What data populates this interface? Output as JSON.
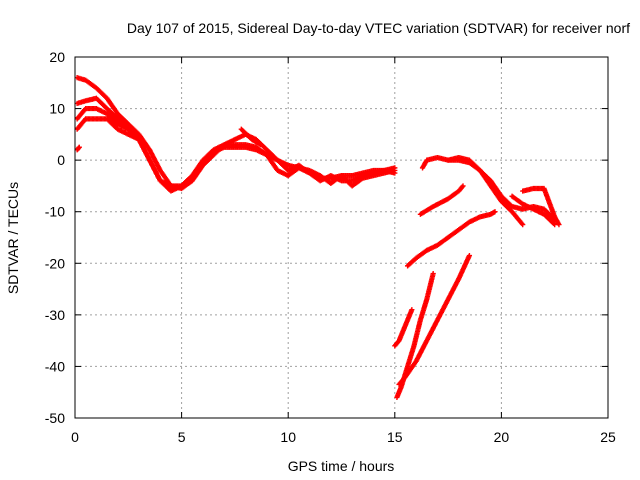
{
  "chart_data": {
    "type": "scatter",
    "title": "Day 107 of 2015, Sidereal Day-to-day VTEC variation (SDTVAR) for receiver norf",
    "xlabel": "GPS time / hours",
    "ylabel": "SDTVAR / TECUs",
    "xlim": [
      0,
      25
    ],
    "ylim": [
      -50,
      20
    ],
    "xticks": [
      0,
      5,
      10,
      15,
      20,
      25
    ],
    "yticks": [
      -50,
      -40,
      -30,
      -20,
      -10,
      0,
      10,
      20
    ],
    "grid": true,
    "marker": "+",
    "color": "#ff0000",
    "series": [
      {
        "values": [
          [
            0.1,
            16
          ],
          [
            0.5,
            15.5
          ],
          [
            1,
            14
          ],
          [
            1.5,
            12
          ],
          [
            2,
            9
          ],
          [
            2.5,
            7
          ],
          [
            3,
            5
          ],
          [
            3.5,
            2
          ],
          [
            4,
            -2
          ],
          [
            4.5,
            -5
          ],
          [
            5,
            -5.5
          ],
          [
            5.5,
            -4
          ],
          [
            6,
            -1
          ],
          [
            6.5,
            1.5
          ],
          [
            7,
            2.5
          ],
          [
            7.5,
            2.5
          ],
          [
            8,
            2.5
          ],
          [
            8.5,
            2
          ],
          [
            9,
            1
          ],
          [
            9.5,
            0
          ],
          [
            10,
            -1
          ],
          [
            10.5,
            -1.5
          ],
          [
            11,
            -2.5
          ],
          [
            11.5,
            -3.5
          ],
          [
            12,
            -3.5
          ],
          [
            12.5,
            -3
          ],
          [
            13,
            -3
          ],
          [
            13.5,
            -2.5
          ],
          [
            14,
            -2
          ],
          [
            14.5,
            -2
          ],
          [
            15,
            -1.5
          ]
        ]
      },
      {
        "values": [
          [
            0.1,
            8
          ],
          [
            0.5,
            10
          ],
          [
            1,
            10
          ],
          [
            1.5,
            9
          ],
          [
            2,
            7
          ],
          [
            2.5,
            6
          ],
          [
            3,
            4
          ],
          [
            3.5,
            0
          ],
          [
            4,
            -4
          ],
          [
            4.5,
            -6
          ],
          [
            5,
            -5
          ],
          [
            5.5,
            -3
          ],
          [
            6,
            0
          ],
          [
            6.5,
            2
          ],
          [
            7,
            3
          ],
          [
            7.5,
            3
          ],
          [
            8,
            3
          ],
          [
            8.5,
            2.5
          ],
          [
            9,
            1
          ],
          [
            9.5,
            -2
          ],
          [
            10,
            -3
          ],
          [
            10.5,
            -1.5
          ],
          [
            11,
            -2
          ],
          [
            11.5,
            -3
          ],
          [
            12,
            -4.5
          ],
          [
            12.5,
            -3
          ],
          [
            13,
            -5
          ],
          [
            13.5,
            -3.5
          ],
          [
            14,
            -3
          ],
          [
            14.5,
            -2.5
          ],
          [
            15,
            -2
          ]
        ]
      },
      {
        "values": [
          [
            0.1,
            6
          ],
          [
            0.5,
            8
          ],
          [
            1,
            8
          ],
          [
            1.5,
            8
          ],
          [
            2,
            6
          ],
          [
            2.5,
            5
          ],
          [
            3,
            4
          ],
          [
            3.5,
            0
          ],
          [
            4,
            -4
          ],
          [
            4.5,
            -5
          ],
          [
            5,
            -5
          ],
          [
            5.5,
            -3
          ],
          [
            6,
            -1
          ],
          [
            6.5,
            1
          ],
          [
            7,
            3
          ],
          [
            7.5,
            4
          ],
          [
            8,
            5
          ],
          [
            8.5,
            4
          ],
          [
            9,
            2
          ],
          [
            9.5,
            0
          ],
          [
            10,
            -2
          ],
          [
            10.5,
            -1
          ],
          [
            11,
            -2.5
          ],
          [
            11.5,
            -4
          ],
          [
            12,
            -3
          ],
          [
            12.5,
            -4
          ],
          [
            13,
            -4
          ],
          [
            13.5,
            -3
          ],
          [
            14,
            -2.5
          ],
          [
            14.5,
            -2
          ],
          [
            15,
            -2.5
          ]
        ]
      },
      {
        "values": [
          [
            0.1,
            11
          ],
          [
            0.5,
            11.5
          ],
          [
            1,
            12
          ],
          [
            1.5,
            10
          ],
          [
            2,
            8
          ],
          [
            2.5,
            6
          ]
        ]
      },
      {
        "values": [
          [
            0.1,
            2
          ],
          [
            0.2,
            2.5
          ]
        ]
      },
      {
        "values": [
          [
            7.8,
            6
          ],
          [
            8.3,
            4
          ],
          [
            8.7,
            3
          ]
        ]
      },
      {
        "values": [
          [
            16.3,
            -1.5
          ],
          [
            16.5,
            0
          ],
          [
            17,
            0.5
          ],
          [
            17.5,
            0
          ],
          [
            18,
            0
          ],
          [
            18.5,
            -0.5
          ],
          [
            19,
            -2
          ],
          [
            19.5,
            -4
          ],
          [
            20,
            -7
          ],
          [
            20.5,
            -9
          ],
          [
            21,
            -9.5
          ],
          [
            21.5,
            -9
          ],
          [
            22,
            -9.5
          ],
          [
            22.5,
            -11.5
          ]
        ]
      },
      {
        "values": [
          [
            17.5,
            0
          ],
          [
            18,
            0.5
          ],
          [
            18.5,
            0
          ],
          [
            19,
            -2
          ],
          [
            19.5,
            -5
          ],
          [
            20,
            -8
          ],
          [
            20.5,
            -10
          ],
          [
            21,
            -12.5
          ]
        ]
      },
      {
        "values": [
          [
            20.5,
            -7
          ],
          [
            21,
            -8.5
          ],
          [
            21.5,
            -9.5
          ],
          [
            22,
            -10.5
          ],
          [
            22.5,
            -12.5
          ]
        ]
      },
      {
        "values": [
          [
            21,
            -6
          ],
          [
            21.5,
            -5.5
          ],
          [
            22,
            -5.5
          ],
          [
            22.5,
            -11
          ],
          [
            22.7,
            -12.5
          ]
        ]
      },
      {
        "values": [
          [
            16.2,
            -10.5
          ],
          [
            16.8,
            -9
          ],
          [
            17.5,
            -7.5
          ],
          [
            18,
            -6
          ],
          [
            18.2,
            -5
          ]
        ]
      },
      {
        "values": [
          [
            15.6,
            -20.5
          ],
          [
            16,
            -19
          ],
          [
            16.5,
            -17.5
          ],
          [
            17,
            -16.5
          ],
          [
            17.5,
            -15
          ],
          [
            18,
            -13.5
          ],
          [
            18.5,
            -12
          ],
          [
            19,
            -11
          ],
          [
            19.5,
            -10.5
          ],
          [
            19.7,
            -10
          ]
        ]
      },
      {
        "values": [
          [
            15.2,
            -43.5
          ],
          [
            15.5,
            -42
          ],
          [
            16,
            -39
          ],
          [
            16.5,
            -35
          ],
          [
            17,
            -31
          ],
          [
            17.5,
            -27
          ],
          [
            18,
            -23
          ],
          [
            18.5,
            -18.5
          ]
        ]
      },
      {
        "values": [
          [
            15.1,
            -46
          ],
          [
            15.3,
            -44
          ],
          [
            15.6,
            -40
          ],
          [
            15.9,
            -36
          ],
          [
            16.2,
            -31
          ],
          [
            16.5,
            -27
          ],
          [
            16.8,
            -22
          ]
        ]
      },
      {
        "values": [
          [
            15,
            -36
          ],
          [
            15.2,
            -35
          ],
          [
            15.4,
            -33
          ],
          [
            15.6,
            -31
          ],
          [
            15.8,
            -29
          ]
        ]
      }
    ]
  }
}
